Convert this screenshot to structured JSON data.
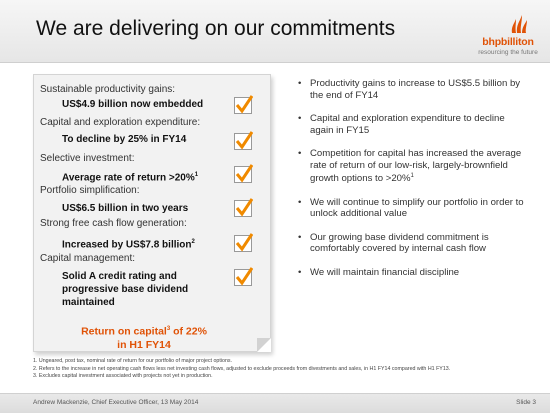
{
  "title": "We are delivering on our commitments",
  "logo": {
    "icon": "bhp-flame-logo-icon",
    "name": "bhpbilliton",
    "tagline": "resourcing the future",
    "color": "#e05206"
  },
  "checklist": [
    {
      "category": "Sustainable productivity gains:",
      "value": "US$4.9 billion now embedded",
      "sup": ""
    },
    {
      "category": "Capital and exploration expenditure:",
      "value": "To decline by 25% in FY14",
      "sup": ""
    },
    {
      "category": "Selective investment:",
      "value": "Average rate of return >20%",
      "sup": "1"
    },
    {
      "category": "Portfolio simplification:",
      "value": "US$6.5 billion in two years",
      "sup": ""
    },
    {
      "category": "Strong free cash flow generation:",
      "value": "Increased by US$7.8 billion",
      "sup": "2"
    },
    {
      "category": "Capital management:",
      "value": "Solid A credit rating and progressive base dividend maintained",
      "sup": ""
    }
  ],
  "return_on_capital": {
    "line1": "Return on capital",
    "sup": "3",
    "line1_tail": " of 22%",
    "line2": "in H1 FY14"
  },
  "bullets": [
    {
      "text": "Productivity gains to increase to US$5.5 billion by the end of FY14",
      "sup": ""
    },
    {
      "text": "Capital and exploration expenditure to decline again in FY15",
      "sup": ""
    },
    {
      "text": "Competition for capital has increased the average rate of return of our low-risk, largely-brownfield growth options to >20%",
      "sup": "1"
    },
    {
      "text": "We will continue to simplify our portfolio in order to unlock additional value",
      "sup": ""
    },
    {
      "text": "Our growing base dividend commitment is comfortably covered by internal cash flow",
      "sup": ""
    },
    {
      "text": "We will maintain financial discipline",
      "sup": ""
    }
  ],
  "footnotes": [
    "1.   Ungeared, post tax, nominal rate of return for our portfolio of major project options.",
    "2.   Refers to the increase in net operating cash flows less net investing cash flows, adjusted to exclude proceeds from divestments and sales, in H1 FY14 compared with H1 FY13.",
    "3.   Excludes capital investment associated with projects not yet in production."
  ],
  "footer": {
    "presenter": "Andrew Mackenzie, Chief Executive Officer, 13 May 2014",
    "slide": "Slide 3"
  },
  "colors": {
    "accent": "#e05206",
    "check": "#f08a00"
  }
}
